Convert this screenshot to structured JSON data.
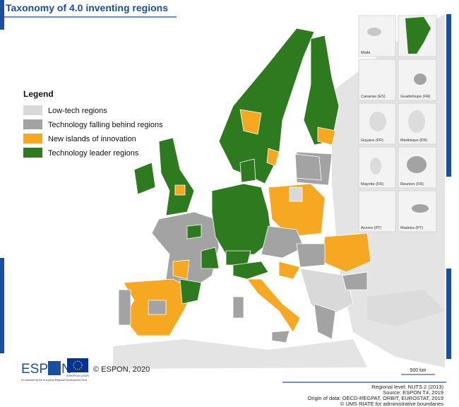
{
  "header": {
    "title": "Taxonomy of 4.0 inventing regions"
  },
  "legend": {
    "title": "Legend",
    "items": [
      {
        "label": "Low-tech regions",
        "color": "#d9d9d9"
      },
      {
        "label": "Technology falling behind regions",
        "color": "#a3a3a3"
      },
      {
        "label": "New islands of innovation",
        "color": "#f7a823"
      },
      {
        "label": "Technology leader regions",
        "color": "#2d7a1f"
      }
    ]
  },
  "insets": [
    "Malta",
    "Canarias (ES)",
    "Guadeloupe (FR)",
    "Guyane (FR)",
    "Martinique (FR)",
    "Mayotte (FR)",
    "Reunion (FR)",
    "Acores (PT)",
    "Madeira (PT)"
  ],
  "scale_bar": "500 km",
  "logo": {
    "left": "ESP",
    "right": "N",
    "eu": "EUROPEAN UNION",
    "cofinance": "Co-financed by the European Regional Development Fund"
  },
  "copyright": "© ESPON, 2020",
  "footer": [
    "Regional level: NUTS 2 (2013)",
    "Source: ESPON T4, 2019",
    "Origin of data: OECD-REGPAT, ORBIT, EUROSTAT, 2019",
    "© UMS RIATE for administrative boundaries"
  ]
}
